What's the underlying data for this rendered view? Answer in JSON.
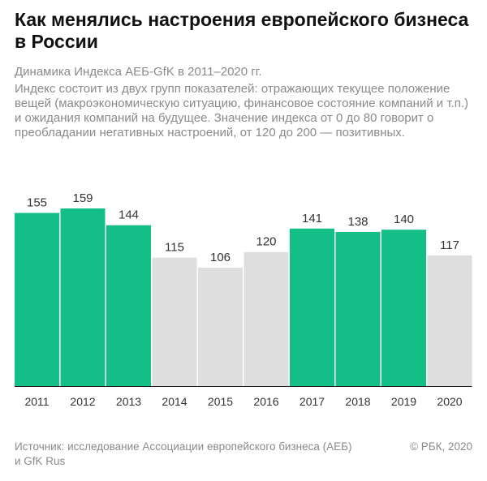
{
  "header": {
    "title": "Как менялись настроения европейского бизнеса в России",
    "subtitle": "Динамика Индекса АЕБ-GfK в 2011–2020 гг.",
    "description": "Индекс состоит из двух групп показателей: отражающих текущее положение вещей (макроэкономическую ситуацию, финансовое состояние компаний и т.п.) и ожидания компаний на будущее. Значение индекса от 0 до 80 говорит о преобладании негативных настроений, от 120 до 200 — позитивных."
  },
  "chart_data": {
    "type": "bar",
    "title": "Как менялись настроения европейского бизнеса в России",
    "subtitle": "Динамика Индекса АЕБ-GfK в 2011–2020 гг.",
    "xlabel": "",
    "ylabel": "",
    "ylim": [
      0,
      159
    ],
    "grid": false,
    "categories": [
      "2011",
      "2012",
      "2013",
      "2014",
      "2015",
      "2016",
      "2017",
      "2018",
      "2019",
      "2020"
    ],
    "values": [
      155,
      159,
      144,
      115,
      106,
      120,
      141,
      138,
      140,
      117
    ],
    "highlighted": [
      true,
      true,
      true,
      false,
      false,
      false,
      true,
      true,
      true,
      false
    ],
    "colors": {
      "highlight": "#13bf87",
      "normal": "#dedede",
      "baseline": "#222222",
      "label": "#333333",
      "tick": "#333333"
    }
  },
  "footer": {
    "source": "Источник: исследование Ассоциации европейского бизнеса (АЕБ) и GfK Rus",
    "copyright": "© РБК, 2020"
  }
}
